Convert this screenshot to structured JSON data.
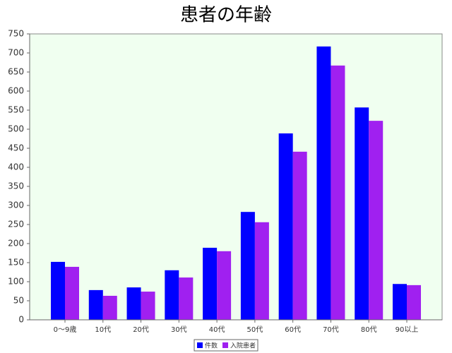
{
  "chart_data": {
    "type": "bar",
    "title": "患者の年齢",
    "categories": [
      "0〜9歳",
      "10代",
      "20代",
      "30代",
      "40代",
      "50代",
      "60代",
      "70代",
      "80代",
      "90以上"
    ],
    "series": [
      {
        "name": "件数",
        "color": "#0000ff",
        "values": [
          152,
          78,
          85,
          130,
          189,
          283,
          489,
          717,
          557,
          94
        ]
      },
      {
        "name": "入院患者",
        "color": "#a020f0",
        "values": [
          139,
          63,
          74,
          111,
          180,
          256,
          441,
          667,
          522,
          91
        ]
      }
    ],
    "ylim": [
      0,
      750
    ],
    "yticks": [
      0,
      50,
      100,
      150,
      200,
      250,
      300,
      350,
      400,
      450,
      500,
      550,
      600,
      650,
      700,
      750
    ],
    "grid": false,
    "legend": "bottom",
    "background": "#f0fff0"
  }
}
